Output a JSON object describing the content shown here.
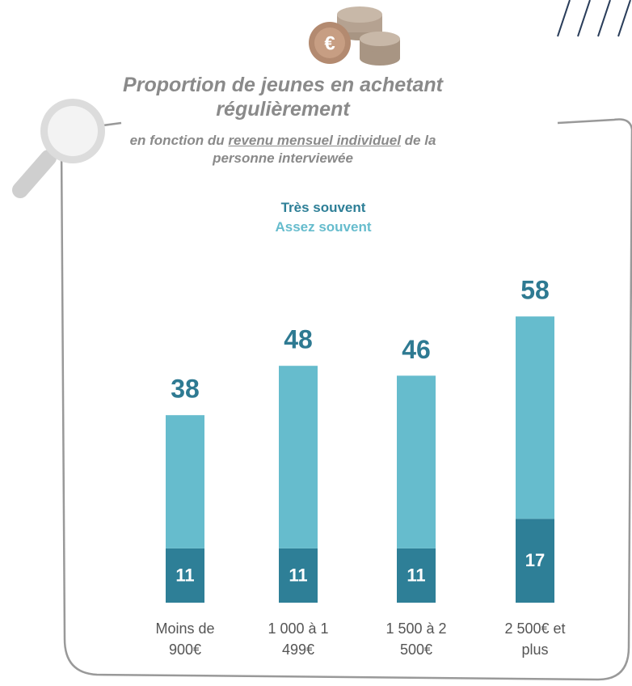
{
  "chart_data": {
    "type": "stacked_bar",
    "title": "Proportion de jeunes en achetant régulièrement",
    "subtitle": [
      "en fonction du",
      "revenu mensuel individuel",
      "de la personne interviewée"
    ],
    "categories": [
      "Moins de 900€",
      "1 000 à 1 499€",
      "1 500 à 2 500€",
      "2 500€ et plus"
    ],
    "series": [
      {
        "name": "Très souvent",
        "color": "#2e7f97",
        "values": [
          11,
          11,
          11,
          17
        ]
      },
      {
        "name": "Assez souvent",
        "color": "#66bccd",
        "values": [
          27,
          37,
          35,
          41
        ]
      }
    ],
    "totals": [
      38,
      48,
      46,
      58
    ]
  }
}
